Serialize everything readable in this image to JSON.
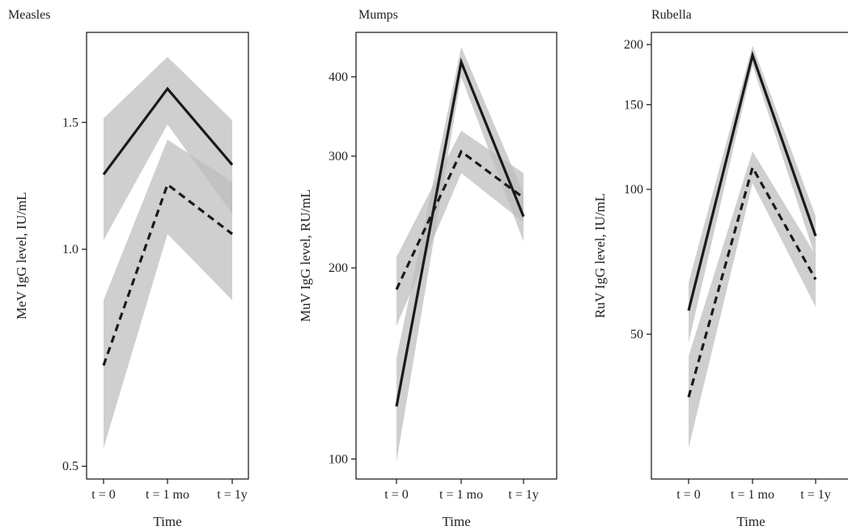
{
  "chart_data": [
    {
      "type": "line",
      "title": "Measles",
      "xlabel": "Time",
      "ylabel": "MeV IgG level, IU/mL",
      "categories": [
        "t = 0",
        "t = 1 mo",
        "t = 1y"
      ],
      "y_scale": "log",
      "ylim": [
        0.48,
        2.0
      ],
      "yticks": [
        0.5,
        1.0,
        1.5
      ],
      "ytick_labels": [
        "0.5",
        "1.0",
        "1.5"
      ],
      "grid": false,
      "band_color": "#bdbdbd",
      "line_color": "#1a1a1a",
      "series": [
        {
          "style": "solid",
          "values": [
            1.27,
            1.67,
            1.31
          ],
          "lower": [
            1.03,
            1.49,
            1.12
          ],
          "upper": [
            1.52,
            1.85,
            1.51
          ]
        },
        {
          "style": "dashed",
          "values": [
            0.69,
            1.23,
            1.05
          ],
          "lower": [
            0.53,
            1.05,
            0.85
          ],
          "upper": [
            0.85,
            1.42,
            1.24
          ]
        }
      ]
    },
    {
      "type": "line",
      "title": "Mumps",
      "xlabel": "Time",
      "ylabel": "MuV IgG level, RU/mL",
      "categories": [
        "t = 0",
        "t = 1 mo",
        "t = 1y"
      ],
      "y_scale": "log",
      "ylim": [
        93,
        470
      ],
      "yticks": [
        100,
        200,
        300,
        400
      ],
      "ytick_labels": [
        "100",
        "200",
        "300",
        "400"
      ],
      "grid": false,
      "band_color": "#bdbdbd",
      "line_color": "#1a1a1a",
      "series": [
        {
          "style": "solid",
          "values": [
            121,
            422,
            241
          ],
          "lower": [
            99,
            400,
            220
          ],
          "upper": [
            144,
            446,
            262
          ]
        },
        {
          "style": "dashed",
          "values": [
            185,
            305,
            258
          ],
          "lower": [
            162,
            282,
            236
          ],
          "upper": [
            208,
            329,
            282
          ]
        }
      ]
    },
    {
      "type": "line",
      "title": "Rubella",
      "xlabel": "Time",
      "ylabel": "RuV IgG level, IU/mL",
      "categories": [
        "t = 0",
        "t = 1 mo",
        "t = 1y"
      ],
      "y_scale": "log",
      "ylim": [
        25,
        212
      ],
      "yticks": [
        50,
        100,
        150,
        200
      ],
      "ytick_labels": [
        "50",
        "100",
        "150",
        "200"
      ],
      "grid": false,
      "band_color": "#bdbdbd",
      "line_color": "#1a1a1a",
      "series": [
        {
          "style": "solid",
          "values": [
            56,
            190,
            80
          ],
          "lower": [
            48,
            181,
            72
          ],
          "upper": [
            64,
            199,
            88
          ]
        },
        {
          "style": "dashed",
          "values": [
            37,
            111,
            65
          ],
          "lower": [
            29,
            103,
            57
          ],
          "upper": [
            45,
            120,
            73
          ]
        }
      ]
    }
  ]
}
